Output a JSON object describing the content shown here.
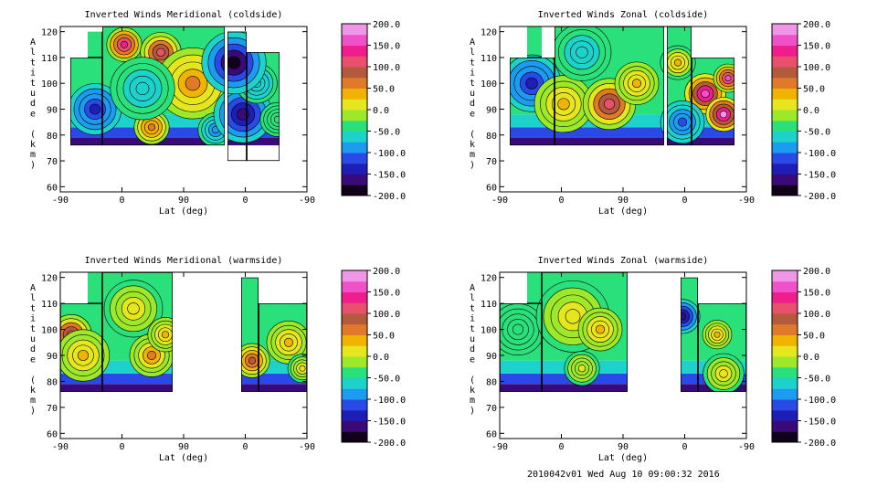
{
  "colormap": {
    "stops": [
      "#100018",
      "#3a0a78",
      "#1e1eb4",
      "#2a4ae8",
      "#1c9cf0",
      "#1ed2cc",
      "#2ae07a",
      "#9ee82a",
      "#e6e61e",
      "#f0b400",
      "#e07a28",
      "#b45a3c",
      "#e8506e",
      "#f01e8c",
      "#f050c8",
      "#f096e6"
    ],
    "gap_color": "#ffffff"
  },
  "footer": "2010042v01 Wed Aug 10 09:00:32 2016",
  "chart_data": [
    {
      "type": "heatmap",
      "title": "Inverted Winds Meridional (coldside)",
      "xlabel": "Lat (deg)",
      "ylabel": "Altitude (km)",
      "xticks": [
        "-90",
        "0",
        "90",
        "0",
        "-90"
      ],
      "yticks": [
        "60",
        "70",
        "80",
        "90",
        "100",
        "110",
        "120"
      ],
      "ylim": [
        58,
        122
      ],
      "colorbar": {
        "min": -200,
        "max": 200,
        "labels": [
          "200.0",
          "150.0",
          "100.0",
          "50.0",
          "0.0",
          "-50.0",
          "-100.0",
          "-150.0",
          "-200.0"
        ]
      },
      "segments": [
        {
          "x": [
            -79,
            -44
          ],
          "y": [
            76,
            110
          ],
          "top_to": 120,
          "top_x": [
            -60,
            -44
          ]
        },
        {
          "x": [
            -44,
            90
          ],
          "y": [
            76,
            122
          ]
        },
        {
          "x": [
            93,
            114
          ],
          "y": [
            70,
            120
          ]
        },
        {
          "x": [
            114,
            150
          ],
          "y": [
            70,
            112
          ]
        }
      ],
      "features": [
        {
          "x": -52,
          "y": 90,
          "v": -130,
          "r": 18
        },
        {
          "x": -20,
          "y": 115,
          "v": 140,
          "r": 12
        },
        {
          "x": 20,
          "y": 112,
          "v": 120,
          "r": 14
        },
        {
          "x": 10,
          "y": 83,
          "v": 70,
          "r": 12
        },
        {
          "x": 55,
          "y": 100,
          "v": 60,
          "r": 25
        },
        {
          "x": 0,
          "y": 98,
          "v": -60,
          "r": 22
        },
        {
          "x": 80,
          "y": 82,
          "v": -90,
          "r": 12
        },
        {
          "x": 110,
          "y": 88,
          "v": -160,
          "r": 20
        },
        {
          "x": 125,
          "y": 100,
          "v": -70,
          "r": 14
        },
        {
          "x": 148,
          "y": 86,
          "v": -40,
          "r": 12
        },
        {
          "x": 100,
          "y": 108,
          "v": -180,
          "r": 22
        }
      ]
    },
    {
      "type": "heatmap",
      "title": "Inverted Winds Zonal (coldside)",
      "xlabel": "Lat (deg)",
      "ylabel": "Altitude (km)",
      "xticks": [
        "-90",
        "0",
        "90",
        "0",
        "-90"
      ],
      "yticks": [
        "60",
        "70",
        "80",
        "90",
        "100",
        "110",
        "120"
      ],
      "ylim": [
        58,
        122
      ],
      "colorbar": {
        "min": -200,
        "max": 200,
        "labels": [
          "200.0",
          "150.0",
          "100.0",
          "50.0",
          "0.0",
          "-50.0",
          "-100.0",
          "-150.0",
          "-200.0"
        ]
      },
      "segments": [
        {
          "x": [
            -79,
            -30
          ],
          "y": [
            76,
            110
          ],
          "top_to": 122,
          "top_x": [
            -60,
            -44
          ]
        },
        {
          "x": [
            -30,
            90
          ],
          "y": [
            76,
            122
          ]
        },
        {
          "x": [
            93,
            120
          ],
          "y": [
            76,
            122
          ]
        },
        {
          "x": [
            120,
            167
          ],
          "y": [
            76,
            110
          ]
        }
      ],
      "features": [
        {
          "x": -55,
          "y": 100,
          "v": -140,
          "r": 20
        },
        {
          "x": -20,
          "y": 92,
          "v": 40,
          "r": 20
        },
        {
          "x": 30,
          "y": 92,
          "v": 110,
          "r": 18
        },
        {
          "x": 60,
          "y": 100,
          "v": 40,
          "r": 15
        },
        {
          "x": 0,
          "y": 112,
          "v": -60,
          "r": 20
        },
        {
          "x": 135,
          "y": 96,
          "v": 170,
          "r": 14
        },
        {
          "x": 155,
          "y": 88,
          "v": 190,
          "r": 12
        },
        {
          "x": 110,
          "y": 85,
          "v": -110,
          "r": 15
        },
        {
          "x": 160,
          "y": 102,
          "v": 150,
          "r": 10
        },
        {
          "x": 105,
          "y": 108,
          "v": 30,
          "r": 12
        }
      ]
    },
    {
      "type": "heatmap",
      "title": "Inverted Winds Meridional (warmside)",
      "xlabel": "Lat (deg)",
      "ylabel": "Altitude (km)",
      "xticks": [
        "-90",
        "0",
        "90",
        "0",
        "-90"
      ],
      "yticks": [
        "60",
        "70",
        "80",
        "90",
        "100",
        "110",
        "120"
      ],
      "ylim": [
        58,
        122
      ],
      "colorbar": {
        "min": -200,
        "max": 200,
        "labels": [
          "200.0",
          "150.0",
          "100.0",
          "50.0",
          "0.0",
          "-50.0",
          "-100.0",
          "-150.0",
          "-200.0"
        ]
      },
      "segments": [
        {
          "x": [
            -90,
            -44
          ],
          "y": [
            76,
            110
          ],
          "top_to": 122,
          "top_x": [
            -60,
            -44
          ]
        },
        {
          "x": [
            -44,
            33
          ],
          "y": [
            76,
            122
          ]
        },
        {
          "x": [
            108,
            127
          ],
          "y": [
            76,
            120
          ]
        },
        {
          "x": [
            127,
            180
          ],
          "y": [
            76,
            110
          ]
        }
      ],
      "features": [
        {
          "x": -78,
          "y": 98,
          "v": 110,
          "r": 14
        },
        {
          "x": -65,
          "y": 90,
          "v": 40,
          "r": 18
        },
        {
          "x": -10,
          "y": 108,
          "v": 20,
          "r": 20
        },
        {
          "x": 10,
          "y": 90,
          "v": 50,
          "r": 15
        },
        {
          "x": 25,
          "y": 98,
          "v": 40,
          "r": 12
        },
        {
          "x": 120,
          "y": 88,
          "v": 90,
          "r": 12
        },
        {
          "x": 160,
          "y": 95,
          "v": 40,
          "r": 15
        },
        {
          "x": 175,
          "y": 85,
          "v": 20,
          "r": 10
        }
      ]
    },
    {
      "type": "heatmap",
      "title": "Inverted Winds Zonal (warmside)",
      "xlabel": "Lat (deg)",
      "ylabel": "Altitude (km)",
      "xticks": [
        "-90",
        "0",
        "90",
        "0",
        "-90"
      ],
      "yticks": [
        "60",
        "70",
        "80",
        "90",
        "100",
        "110",
        "120"
      ],
      "ylim": [
        58,
        122
      ],
      "colorbar": {
        "min": -200,
        "max": 200,
        "labels": [
          "200.0",
          "150.0",
          "100.0",
          "50.0",
          "0.0",
          "-50.0",
          "-100.0",
          "-150.0",
          "-200.0"
        ]
      },
      "segments": [
        {
          "x": [
            -90,
            -44
          ],
          "y": [
            76,
            110
          ],
          "top_to": 122,
          "top_x": [
            -60,
            -44
          ]
        },
        {
          "x": [
            -44,
            50
          ],
          "y": [
            76,
            122
          ]
        },
        {
          "x": [
            108,
            127
          ],
          "y": [
            76,
            120
          ]
        },
        {
          "x": [
            127,
            180
          ],
          "y": [
            76,
            110
          ]
        }
      ],
      "features": [
        {
          "x": -70,
          "y": 100,
          "v": -30,
          "r": 18
        },
        {
          "x": -10,
          "y": 105,
          "v": 10,
          "r": 25
        },
        {
          "x": 20,
          "y": 100,
          "v": 40,
          "r": 15
        },
        {
          "x": 110,
          "y": 105,
          "v": -160,
          "r": 12
        },
        {
          "x": 148,
          "y": 98,
          "v": 40,
          "r": 10
        },
        {
          "x": 155,
          "y": 83,
          "v": 20,
          "r": 14
        },
        {
          "x": 0,
          "y": 85,
          "v": 0,
          "r": 12
        }
      ]
    }
  ]
}
